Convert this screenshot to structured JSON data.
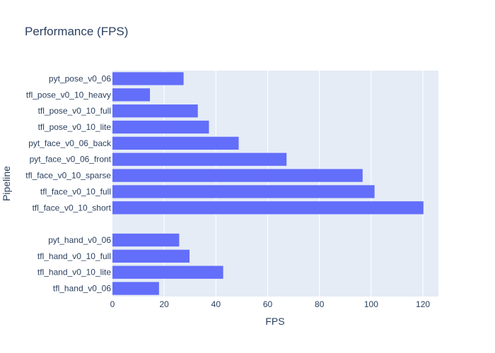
{
  "chart_data": {
    "type": "bar",
    "orientation": "horizontal",
    "title": "Performance (FPS)",
    "xlabel": "FPS",
    "ylabel": "Pipeline",
    "xlim": [
      0,
      126
    ],
    "xticks": [
      0,
      20,
      40,
      60,
      80,
      100,
      120
    ],
    "grid": true,
    "categories": [
      "pyt_pose_v0_06",
      "tfl_pose_v0_10_heavy",
      "tfl_pose_v0_10_full",
      "tfl_pose_v0_10_lite",
      "pyt_face_v0_06_back",
      "pyt_face_v0_06_front",
      "tfl_face_v0_10_sparse",
      "tfl_face_v0_10_full",
      "tfl_face_v0_10_short",
      "",
      "pyt_hand_v0_06",
      "tfl_hand_v0_10_full",
      "tfl_hand_v0_10_lite",
      "tfl_hand_v0_06"
    ],
    "values": [
      27.5,
      14.5,
      33,
      37.3,
      48.8,
      67.3,
      96.7,
      101.3,
      120.2,
      null,
      25.8,
      29.8,
      42.8,
      18
    ],
    "colors": {
      "bar": "#636efa",
      "plot_bg": "#e5ecf6",
      "grid": "#ffffff",
      "text": "#2a3f5f"
    }
  }
}
